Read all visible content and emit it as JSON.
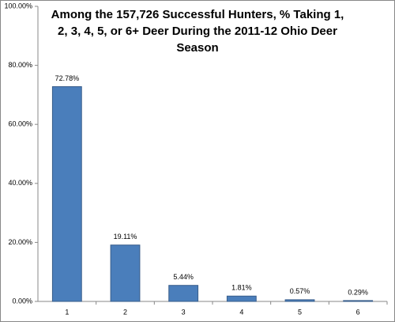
{
  "chart_data": {
    "type": "bar",
    "title": "Among the 157,726 Successful Hunters, % Taking 1, 2, 3, 4, 5, or 6+ Deer During the 2011-12 Ohio Deer Season",
    "categories": [
      "1",
      "2",
      "3",
      "4",
      "5",
      "6"
    ],
    "values": [
      72.78,
      19.11,
      5.44,
      1.81,
      0.57,
      0.29
    ],
    "value_labels": [
      "72.78%",
      "19.11%",
      "5.44%",
      "1.81%",
      "0.57%",
      "0.29%"
    ],
    "color": "#4a7ebb",
    "ylim": [
      0,
      100
    ],
    "yticks": [
      {
        "value": 0,
        "label": "0.00%"
      },
      {
        "value": 20,
        "label": "20.00%"
      },
      {
        "value": 40,
        "label": "40.00%"
      },
      {
        "value": 60,
        "label": "60.00%"
      },
      {
        "value": 80,
        "label": "80.00%"
      },
      {
        "value": 100,
        "label": "100.00%"
      }
    ],
    "grid": false
  }
}
